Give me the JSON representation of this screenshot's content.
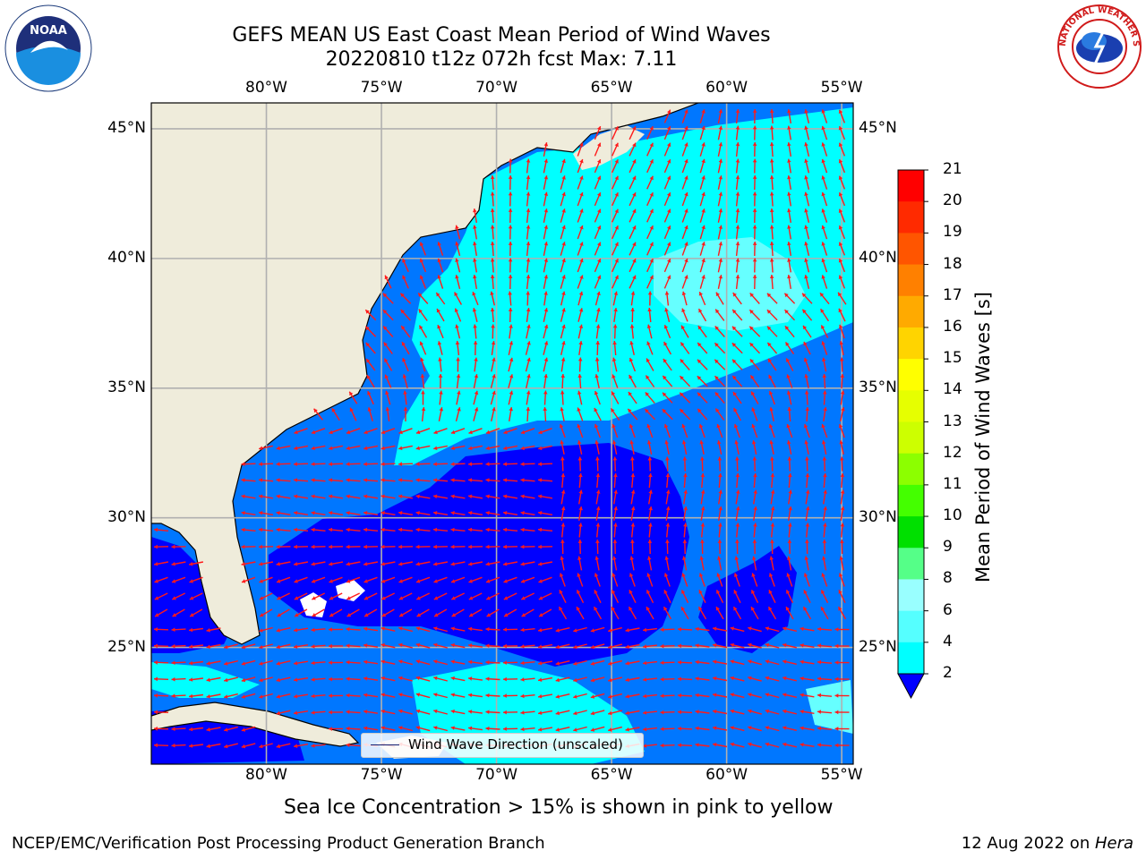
{
  "title": {
    "line1": "GEFS MEAN US East Coast Mean Period of Wind Waves",
    "line2": "20220810 t12z 072h fcst   Max: 7.11"
  },
  "map": {
    "lon_ticks": [
      "80°W",
      "75°W",
      "70°W",
      "65°W",
      "60°W",
      "55°W"
    ],
    "lat_ticks": [
      "45°N",
      "40°N",
      "35°N",
      "30°N",
      "25°N"
    ],
    "lon_range": [
      -85,
      -54.5
    ],
    "lat_range": [
      20.5,
      46
    ],
    "legend_label": "Wind Wave Direction (unscaled)",
    "colors": {
      "land": "#efecdb",
      "coast": "#000000",
      "grid": "#b0b0b0",
      "arrow": "#ff1a1a",
      "band_2_4": "#0000ff",
      "band_4_6": "#0077ff",
      "band_6_8": "#00ffff",
      "band_8_9": "#66ffff"
    }
  },
  "colorbar": {
    "title": "Mean Period of Wind Waves [s]",
    "labels": [
      "21",
      "20",
      "19",
      "18",
      "17",
      "16",
      "15",
      "14",
      "13",
      "12",
      "11",
      "10",
      "9",
      "8",
      "6",
      "4",
      "2"
    ],
    "colors": [
      "#ff0000",
      "#ff2a00",
      "#ff5500",
      "#ff8000",
      "#ffaa00",
      "#ffd400",
      "#ffff00",
      "#e6ff00",
      "#cdff00",
      "#8cff00",
      "#44ff00",
      "#00e000",
      "#55ff88",
      "#99ffff",
      "#55ffff",
      "#00ffff",
      "#0077ff",
      "#0000ff"
    ]
  },
  "caption": "Sea Ice Concentration > 15% is shown in pink to yellow",
  "footer": {
    "left": "NCEP/EMC/Verification Post Processing Product Generation Branch",
    "right_date": "12 Aug 2022 on ",
    "right_host": "Hera"
  },
  "logos": {
    "left": {
      "name": "noaa-logo",
      "text": "NOAA"
    },
    "right": {
      "name": "nws-logo",
      "text": "NATIONAL WEATHER SERVICE"
    }
  }
}
